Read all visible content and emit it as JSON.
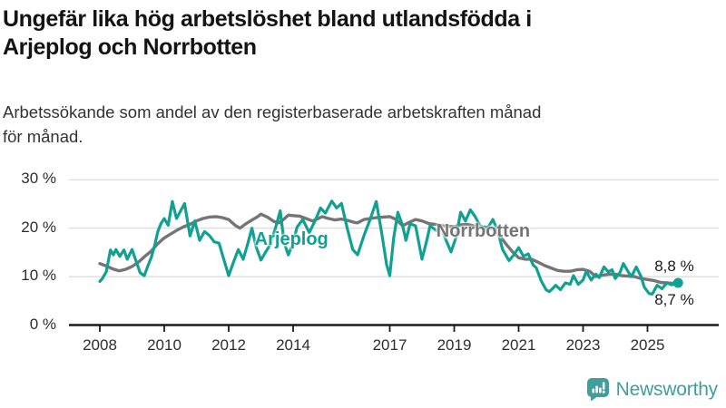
{
  "title_lines": [
    "Ungefär lika hög arbetslöshet bland utlandsfödda i",
    "Arjeplog och Norrbotten"
  ],
  "subtitle_lines": [
    "Arbetssökande som andel av den registerbaserade arbetskraften månad",
    "för månad."
  ],
  "branding": {
    "logo_text": "Newsworthy",
    "logo_icon": "bar-chart-speech-bubble-icon",
    "logo_color": "#3f9f9d"
  },
  "colors": {
    "arjeplog": "#11a192",
    "norrbotten": "#757575",
    "grid": "#d8d8d8",
    "axis": "#1a1a1a",
    "text": "#2e2e2e"
  },
  "chart_data": {
    "type": "line",
    "xlabel": "",
    "ylabel": "",
    "x_unit": "decimal_year",
    "xlim": [
      2007.9,
      2026.3
    ],
    "ylim": [
      0,
      30
    ],
    "grid": "horizontal",
    "legend_position": "inline-labels",
    "y_ticks": [
      {
        "value": 0,
        "label": "0 %"
      },
      {
        "value": 10,
        "label": "10 %"
      },
      {
        "value": 20,
        "label": "20 %"
      },
      {
        "value": 30,
        "label": "30 %"
      }
    ],
    "x_ticks": [
      {
        "value": 2008,
        "label": "2008"
      },
      {
        "value": 2010,
        "label": "2010"
      },
      {
        "value": 2012,
        "label": "2012"
      },
      {
        "value": 2014,
        "label": "2014"
      },
      {
        "value": 2017,
        "label": "2017"
      },
      {
        "value": 2019,
        "label": "2019"
      },
      {
        "value": 2021,
        "label": "2021"
      },
      {
        "value": 2023,
        "label": "2023"
      },
      {
        "value": 2025,
        "label": "2025"
      }
    ],
    "series": [
      {
        "name": "Norrbotten",
        "color": "#757575",
        "width": 3.4,
        "end_label": "8,8 %",
        "end_label_position": "above",
        "end_dot": false,
        "label_anchor": [
          2019.9,
          19.0
        ],
        "points": [
          [
            2008.0,
            12.7
          ],
          [
            2008.2,
            12.2
          ],
          [
            2008.4,
            11.6
          ],
          [
            2008.6,
            11.2
          ],
          [
            2008.8,
            11.5
          ],
          [
            2009.0,
            12.1
          ],
          [
            2009.2,
            13.0
          ],
          [
            2009.4,
            14.2
          ],
          [
            2009.6,
            15.3
          ],
          [
            2009.8,
            16.8
          ],
          [
            2010.0,
            18.0
          ],
          [
            2010.2,
            18.8
          ],
          [
            2010.4,
            19.6
          ],
          [
            2010.6,
            20.3
          ],
          [
            2010.8,
            20.8
          ],
          [
            2011.0,
            21.5
          ],
          [
            2011.2,
            22.0
          ],
          [
            2011.4,
            22.3
          ],
          [
            2011.6,
            22.4
          ],
          [
            2011.8,
            22.2
          ],
          [
            2012.0,
            21.8
          ],
          [
            2012.2,
            20.6
          ],
          [
            2012.35,
            20.0
          ],
          [
            2012.55,
            21.0
          ],
          [
            2012.75,
            21.8
          ],
          [
            2012.9,
            22.4
          ],
          [
            2013.0,
            22.9
          ],
          [
            2013.2,
            22.3
          ],
          [
            2013.4,
            21.4
          ],
          [
            2013.55,
            21.1
          ],
          [
            2013.7,
            21.8
          ],
          [
            2013.85,
            22.7
          ],
          [
            2014.0,
            22.6
          ],
          [
            2014.2,
            22.5
          ],
          [
            2014.4,
            22.0
          ],
          [
            2014.6,
            21.5
          ],
          [
            2014.75,
            21.9
          ],
          [
            2014.9,
            22.4
          ],
          [
            2015.1,
            22.0
          ],
          [
            2015.3,
            21.7
          ],
          [
            2015.5,
            21.9
          ],
          [
            2015.7,
            21.6
          ],
          [
            2015.9,
            21.2
          ],
          [
            2016.0,
            21.1
          ],
          [
            2016.2,
            21.8
          ],
          [
            2016.4,
            22.0
          ],
          [
            2016.6,
            22.2
          ],
          [
            2016.8,
            22.3
          ],
          [
            2017.0,
            22.4
          ],
          [
            2017.2,
            21.8
          ],
          [
            2017.4,
            20.5
          ],
          [
            2017.6,
            21.2
          ],
          [
            2017.8,
            21.8
          ],
          [
            2018.0,
            21.5
          ],
          [
            2018.2,
            21.0
          ],
          [
            2018.4,
            20.8
          ],
          [
            2018.6,
            20.5
          ],
          [
            2018.8,
            20.4
          ],
          [
            2019.0,
            20.3
          ],
          [
            2019.2,
            20.7
          ],
          [
            2019.4,
            20.8
          ],
          [
            2019.6,
            20.5
          ],
          [
            2019.8,
            20.3
          ],
          [
            2020.0,
            20.2
          ],
          [
            2020.2,
            19.8
          ],
          [
            2020.4,
            18.6
          ],
          [
            2020.6,
            16.8
          ],
          [
            2020.8,
            15.2
          ],
          [
            2021.0,
            13.9
          ],
          [
            2021.2,
            13.6
          ],
          [
            2021.4,
            13.6
          ],
          [
            2021.6,
            13.0
          ],
          [
            2021.8,
            12.3
          ],
          [
            2022.0,
            11.8
          ],
          [
            2022.2,
            11.3
          ],
          [
            2022.4,
            11.1
          ],
          [
            2022.6,
            11.1
          ],
          [
            2022.8,
            11.4
          ],
          [
            2023.0,
            11.5
          ],
          [
            2023.2,
            11.1
          ],
          [
            2023.4,
            10.0
          ],
          [
            2023.6,
            10.3
          ],
          [
            2023.8,
            10.5
          ],
          [
            2024.0,
            10.5
          ],
          [
            2024.2,
            10.2
          ],
          [
            2024.4,
            10.1
          ],
          [
            2024.6,
            10.0
          ],
          [
            2024.8,
            9.6
          ],
          [
            2025.0,
            9.4
          ],
          [
            2025.2,
            9.2
          ],
          [
            2025.4,
            8.8
          ],
          [
            2025.6,
            8.7
          ],
          [
            2025.8,
            8.6
          ],
          [
            2025.95,
            8.8
          ]
        ]
      },
      {
        "name": "Arjeplog",
        "color": "#11a192",
        "width": 3.2,
        "end_label": "8,7 %",
        "end_label_position": "below",
        "end_dot": true,
        "label_anchor": [
          2013.95,
          17.3
        ],
        "points": [
          [
            2008.0,
            9.0
          ],
          [
            2008.08,
            9.6
          ],
          [
            2008.2,
            11.0
          ],
          [
            2008.33,
            15.5
          ],
          [
            2008.42,
            14.5
          ],
          [
            2008.5,
            15.6
          ],
          [
            2008.62,
            14.2
          ],
          [
            2008.75,
            15.5
          ],
          [
            2008.85,
            13.6
          ],
          [
            2009.0,
            15.6
          ],
          [
            2009.12,
            13.3
          ],
          [
            2009.25,
            10.8
          ],
          [
            2009.38,
            10.2
          ],
          [
            2009.5,
            12.4
          ],
          [
            2009.6,
            14.0
          ],
          [
            2009.7,
            16.4
          ],
          [
            2009.8,
            19.3
          ],
          [
            2009.9,
            21.0
          ],
          [
            2010.0,
            22.0
          ],
          [
            2010.12,
            20.6
          ],
          [
            2010.25,
            25.5
          ],
          [
            2010.38,
            22.0
          ],
          [
            2010.5,
            23.5
          ],
          [
            2010.63,
            25.1
          ],
          [
            2010.8,
            18.4
          ],
          [
            2010.95,
            21.5
          ],
          [
            2011.1,
            17.5
          ],
          [
            2011.25,
            19.3
          ],
          [
            2011.4,
            18.5
          ],
          [
            2011.55,
            17.2
          ],
          [
            2011.7,
            16.9
          ],
          [
            2011.85,
            13.5
          ],
          [
            2012.0,
            10.2
          ],
          [
            2012.15,
            13.0
          ],
          [
            2012.3,
            15.6
          ],
          [
            2012.45,
            13.6
          ],
          [
            2012.6,
            17.0
          ],
          [
            2012.72,
            20.0
          ],
          [
            2012.85,
            16.2
          ],
          [
            2013.0,
            13.4
          ],
          [
            2013.12,
            14.8
          ],
          [
            2013.28,
            16.5
          ],
          [
            2013.45,
            20.0
          ],
          [
            2013.6,
            23.6
          ],
          [
            2013.72,
            17.0
          ],
          [
            2013.85,
            14.5
          ],
          [
            2014.0,
            17.0
          ],
          [
            2014.12,
            20.2
          ],
          [
            2014.3,
            21.8
          ],
          [
            2014.5,
            19.1
          ],
          [
            2014.68,
            21.5
          ],
          [
            2014.85,
            24.2
          ],
          [
            2015.0,
            23.1
          ],
          [
            2015.2,
            25.6
          ],
          [
            2015.35,
            24.2
          ],
          [
            2015.5,
            25.1
          ],
          [
            2015.68,
            20.0
          ],
          [
            2015.85,
            15.6
          ],
          [
            2016.0,
            14.5
          ],
          [
            2016.2,
            18.5
          ],
          [
            2016.4,
            22.0
          ],
          [
            2016.58,
            25.5
          ],
          [
            2016.75,
            19.0
          ],
          [
            2016.9,
            12.5
          ],
          [
            2017.0,
            10.2
          ],
          [
            2017.12,
            18.0
          ],
          [
            2017.25,
            23.3
          ],
          [
            2017.4,
            20.5
          ],
          [
            2017.5,
            17.5
          ],
          [
            2017.63,
            20.9
          ],
          [
            2017.8,
            20.5
          ],
          [
            2017.9,
            17.0
          ],
          [
            2018.0,
            13.6
          ],
          [
            2018.15,
            17.5
          ],
          [
            2018.25,
            20.5
          ],
          [
            2018.45,
            19.5
          ],
          [
            2018.6,
            20.0
          ],
          [
            2018.75,
            17.5
          ],
          [
            2018.9,
            15.1
          ],
          [
            2019.05,
            18.0
          ],
          [
            2019.2,
            23.3
          ],
          [
            2019.35,
            21.5
          ],
          [
            2019.5,
            23.8
          ],
          [
            2019.65,
            22.4
          ],
          [
            2019.8,
            20.5
          ],
          [
            2020.0,
            19.6
          ],
          [
            2020.2,
            21.8
          ],
          [
            2020.35,
            19.5
          ],
          [
            2020.5,
            15.6
          ],
          [
            2020.7,
            13.3
          ],
          [
            2020.85,
            14.5
          ],
          [
            2021.0,
            16.0
          ],
          [
            2021.15,
            14.2
          ],
          [
            2021.3,
            14.7
          ],
          [
            2021.45,
            12.4
          ],
          [
            2021.55,
            11.8
          ],
          [
            2021.7,
            9.1
          ],
          [
            2021.85,
            7.3
          ],
          [
            2021.95,
            6.9
          ],
          [
            2022.05,
            7.5
          ],
          [
            2022.15,
            8.2
          ],
          [
            2022.3,
            7.3
          ],
          [
            2022.45,
            8.7
          ],
          [
            2022.6,
            8.4
          ],
          [
            2022.7,
            10.2
          ],
          [
            2022.85,
            8.4
          ],
          [
            2023.0,
            9.3
          ],
          [
            2023.1,
            11.1
          ],
          [
            2023.25,
            9.3
          ],
          [
            2023.4,
            10.5
          ],
          [
            2023.5,
            9.8
          ],
          [
            2023.65,
            12.0
          ],
          [
            2023.78,
            11.0
          ],
          [
            2023.9,
            11.4
          ],
          [
            2024.0,
            9.6
          ],
          [
            2024.15,
            10.9
          ],
          [
            2024.25,
            12.7
          ],
          [
            2024.4,
            11.0
          ],
          [
            2024.5,
            10.0
          ],
          [
            2024.65,
            12.0
          ],
          [
            2024.8,
            10.0
          ],
          [
            2024.9,
            7.8
          ],
          [
            2025.05,
            6.5
          ],
          [
            2025.15,
            6.4
          ],
          [
            2025.3,
            8.2
          ],
          [
            2025.45,
            7.5
          ],
          [
            2025.6,
            8.7
          ],
          [
            2025.75,
            8.3
          ],
          [
            2025.95,
            8.7
          ]
        ]
      }
    ]
  }
}
